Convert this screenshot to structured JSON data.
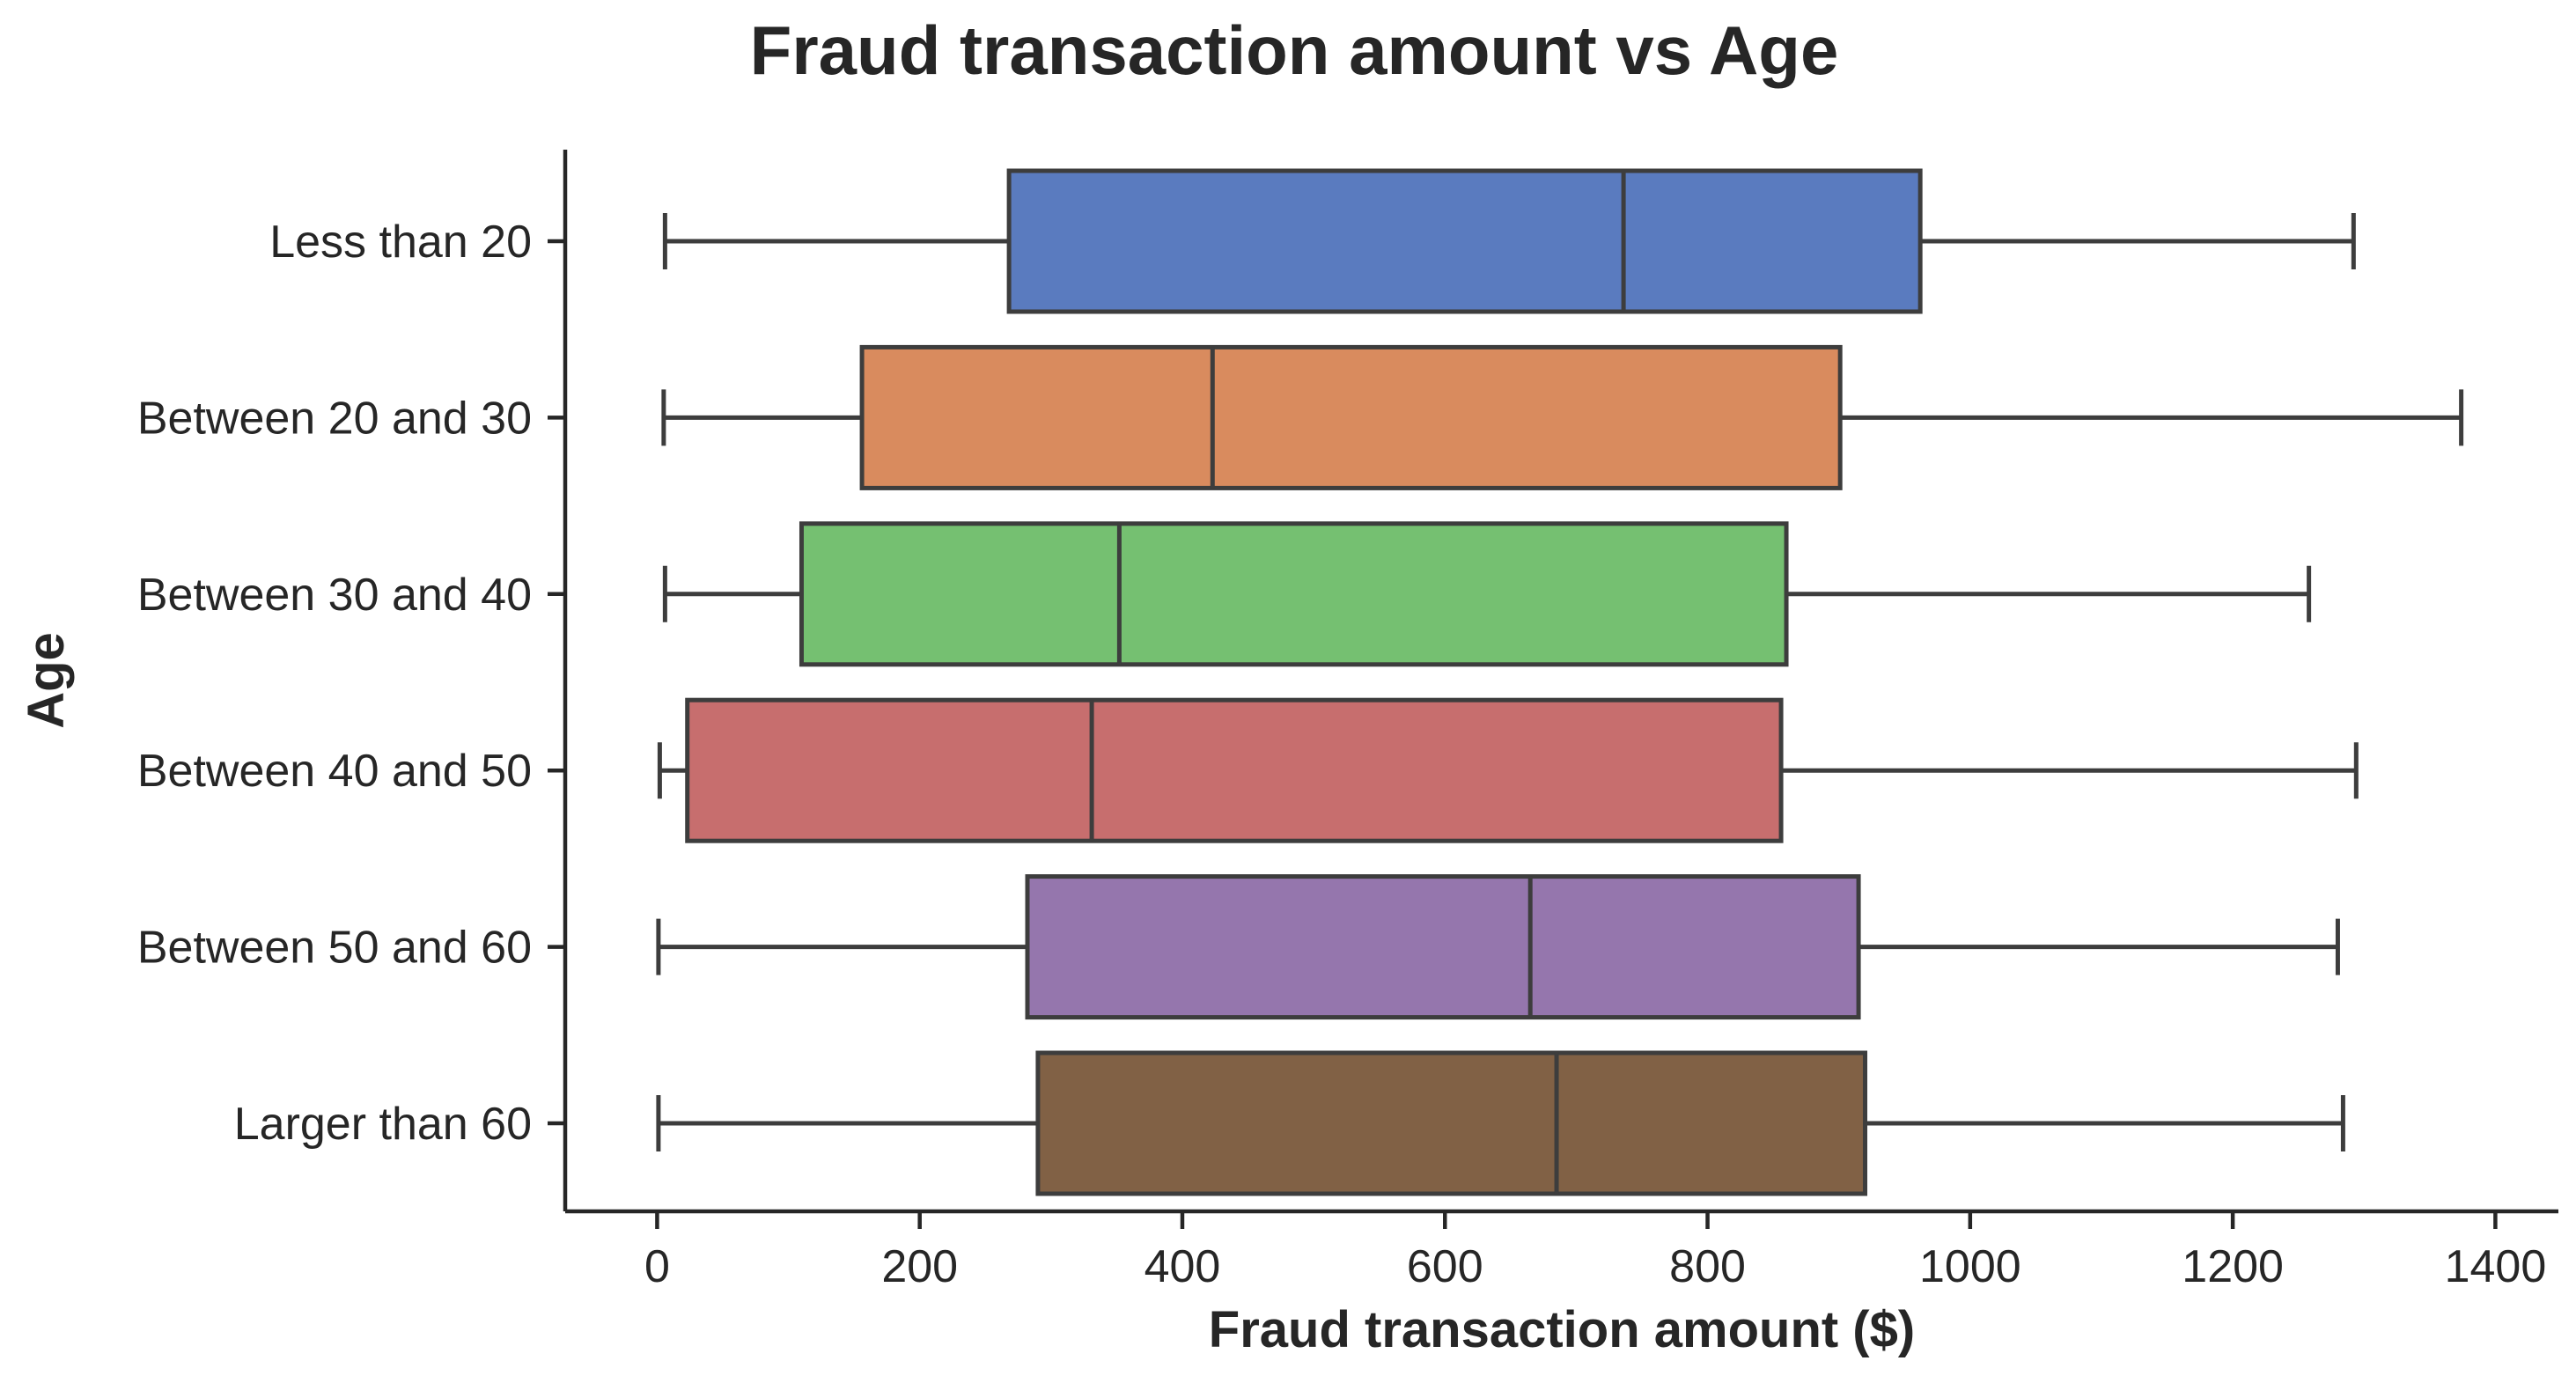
{
  "chart_data": {
    "type": "boxplot",
    "orientation": "horizontal",
    "title": "Fraud transaction amount vs Age",
    "xlabel": "Fraud transaction amount ($)",
    "ylabel": "Age",
    "xlim": [
      -68,
      1448
    ],
    "xticks": [
      0,
      200,
      400,
      600,
      800,
      1000,
      1200,
      1400
    ],
    "grid": false,
    "categories": [
      "Less than 20",
      "Between 20 and 30",
      "Between 30 and 40",
      "Between 40 and 50",
      "Between 50 and 60",
      "Larger than 60"
    ],
    "series": [
      {
        "category": "Less than 20",
        "whisker_low": 6,
        "q1": 268,
        "median": 736,
        "q3": 962,
        "whisker_high": 1292,
        "color": "#5a7bbf"
      },
      {
        "category": "Between 20 and 30",
        "whisker_low": 5,
        "q1": 156,
        "median": 423,
        "q3": 901,
        "whisker_high": 1374,
        "color": "#d98b5e"
      },
      {
        "category": "Between 30 and 40",
        "whisker_low": 6,
        "q1": 110,
        "median": 352,
        "q3": 860,
        "whisker_high": 1258,
        "color": "#75c071"
      },
      {
        "category": "Between 40 and 50",
        "whisker_low": 2,
        "q1": 23,
        "median": 331,
        "q3": 856,
        "whisker_high": 1294,
        "color": "#c76e6e"
      },
      {
        "category": "Between 50 and 60",
        "whisker_low": 1,
        "q1": 282,
        "median": 665,
        "q3": 915,
        "whisker_high": 1280,
        "color": "#9576ad"
      },
      {
        "category": "Larger than 60",
        "whisker_low": 1,
        "q1": 290,
        "median": 685,
        "q3": 920,
        "whisker_high": 1284,
        "color": "#816145"
      }
    ]
  }
}
